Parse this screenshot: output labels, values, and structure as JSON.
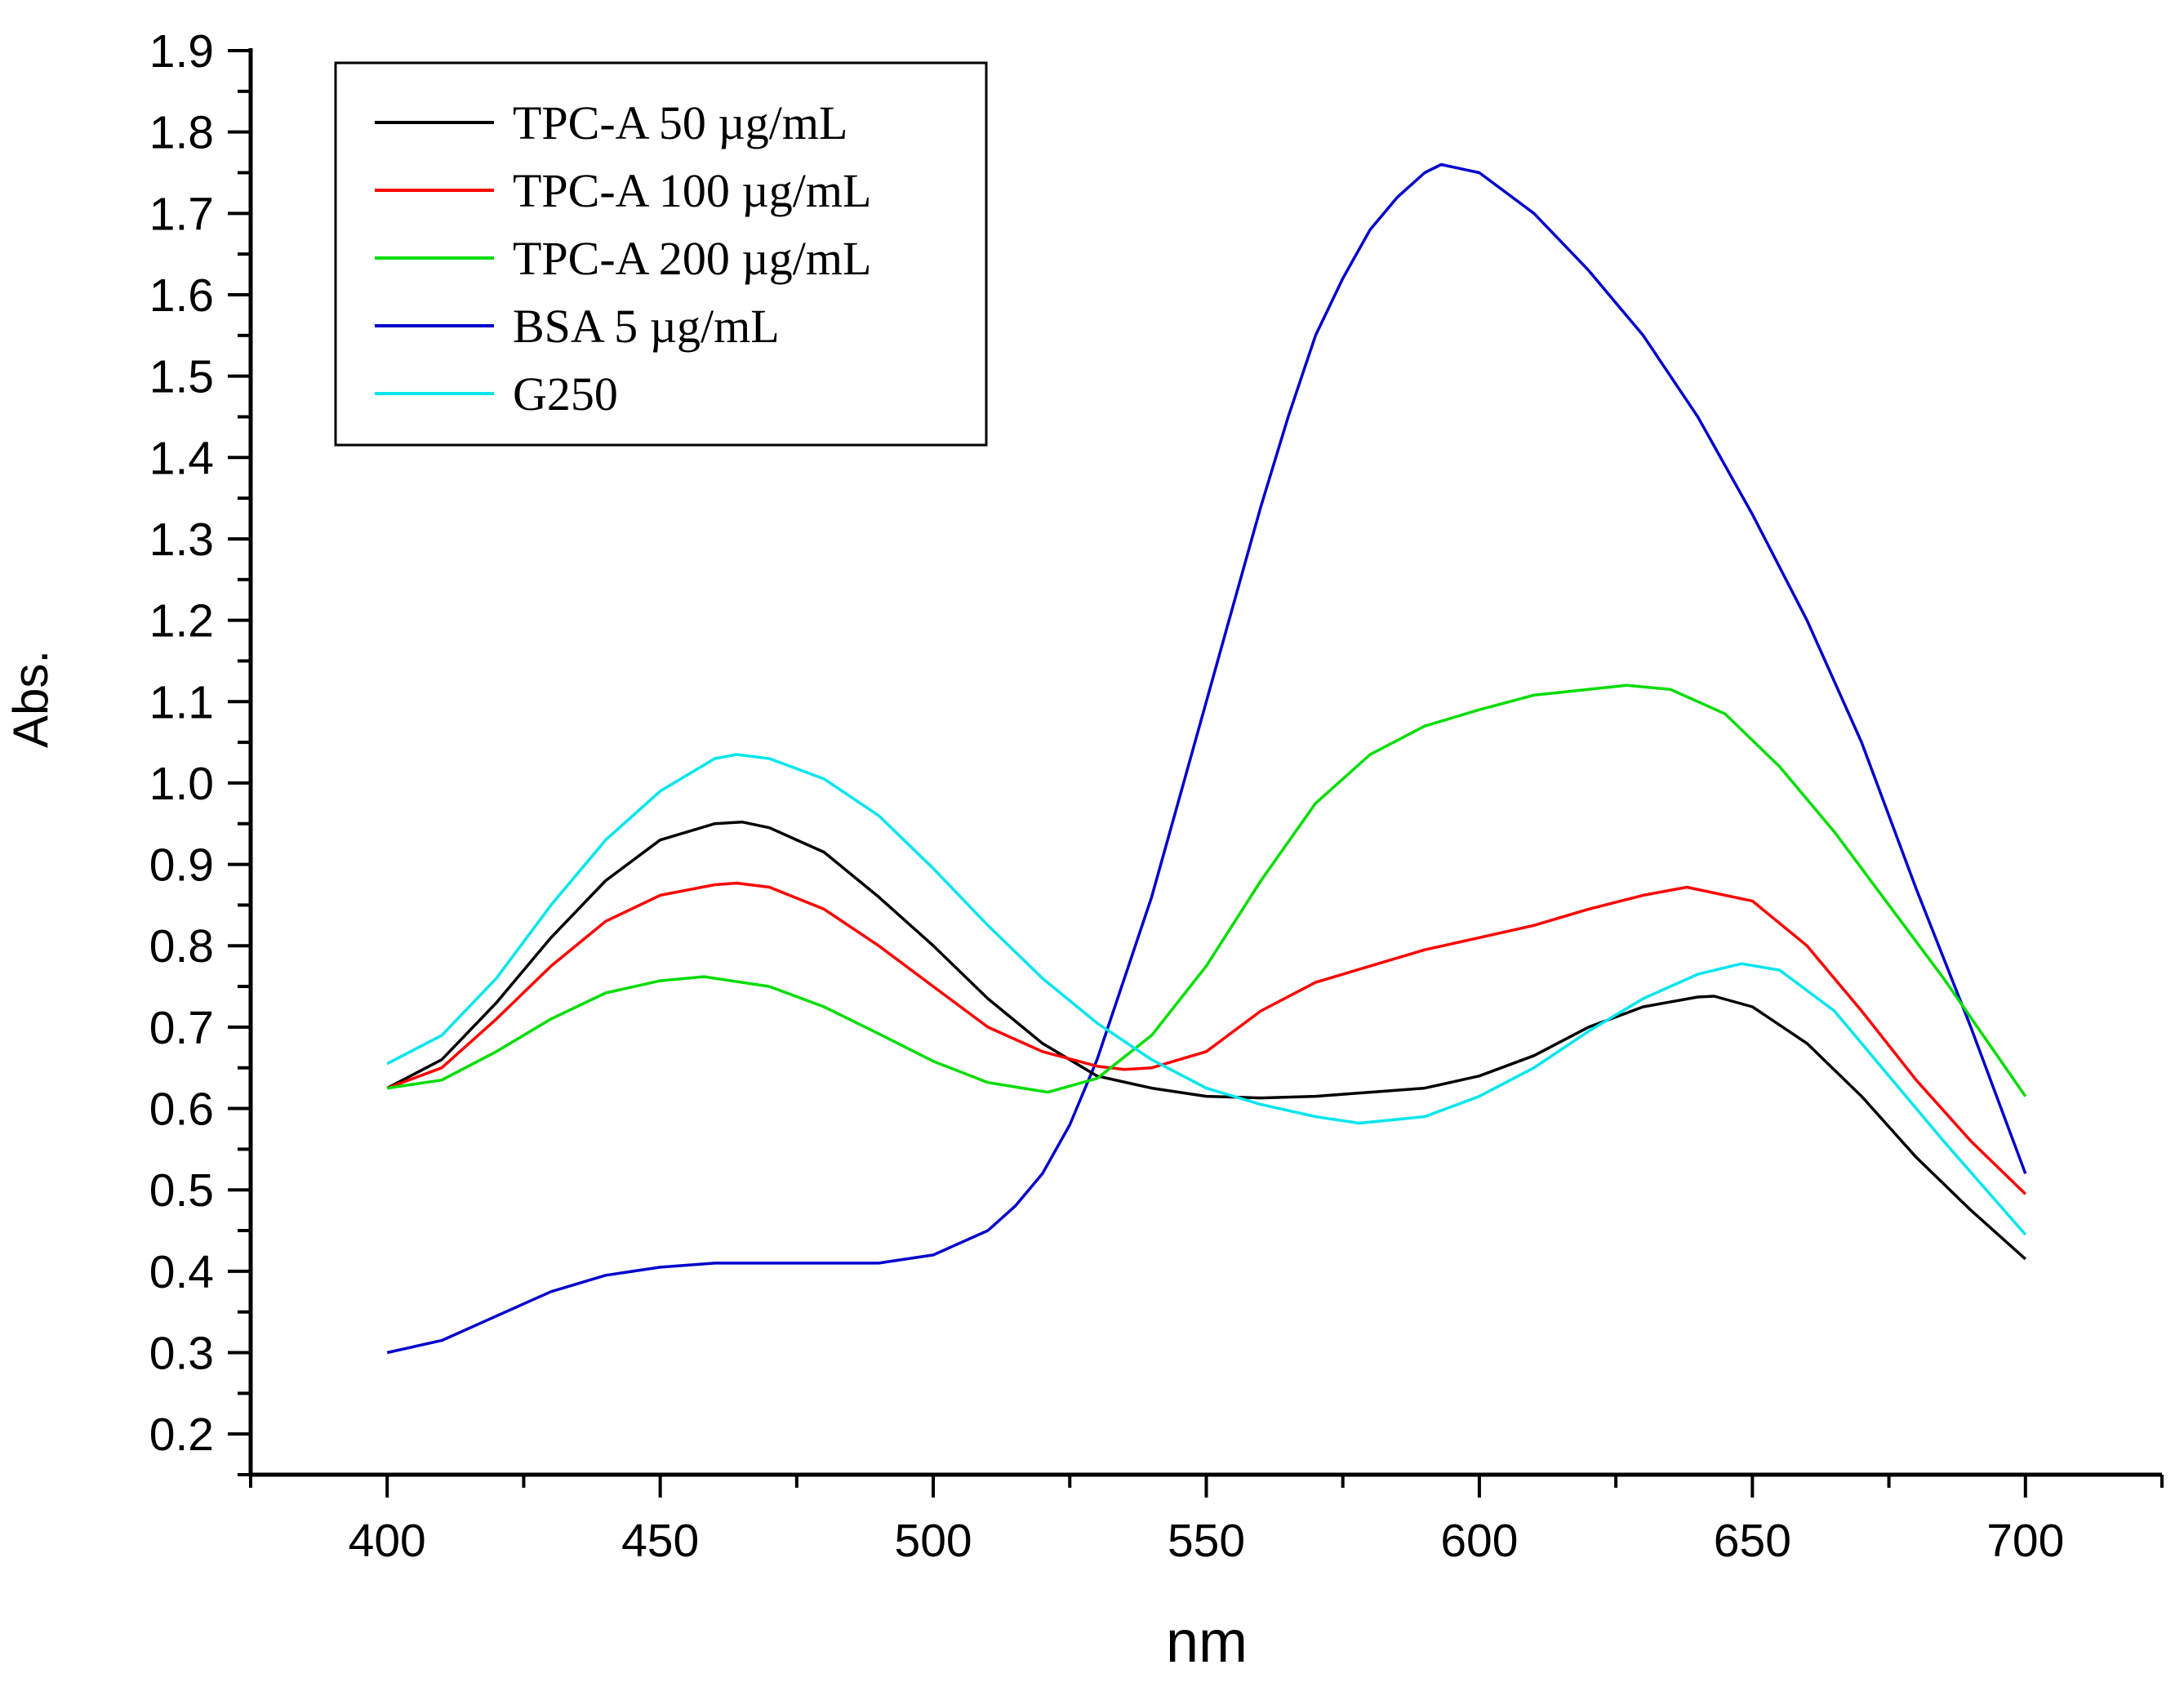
{
  "chart_data": {
    "type": "line",
    "title": "",
    "xlabel": "nm",
    "ylabel": "Abs.",
    "xlim": [
      375,
      725
    ],
    "ylim": [
      0.15,
      1.9
    ],
    "xticks": [
      400,
      450,
      500,
      550,
      600,
      650,
      700
    ],
    "xtick_labels": [
      "400",
      "450",
      "500",
      "550",
      "600",
      "650",
      "700"
    ],
    "yticks": [
      0.2,
      0.3,
      0.4,
      0.5,
      0.6,
      0.7,
      0.8,
      0.9,
      1.0,
      1.1,
      1.2,
      1.3,
      1.4,
      1.5,
      1.6,
      1.7,
      1.8,
      1.9
    ],
    "ytick_labels": [
      "0.2",
      "0.3",
      "0.4",
      "0.5",
      "0.6",
      "0.7",
      "0.8",
      "0.9",
      "1.0",
      "1.1",
      "1.2",
      "1.3",
      "1.4",
      "1.5",
      "1.6",
      "1.7",
      "1.8",
      "1.9"
    ],
    "grid": false,
    "legend_position": "top-left",
    "series": [
      {
        "name": "TPC-A 50 µg/mL",
        "color": "#000000",
        "x": [
          400,
          410,
          420,
          430,
          440,
          450,
          460,
          465,
          470,
          480,
          490,
          500,
          510,
          520,
          530,
          540,
          550,
          560,
          570,
          580,
          590,
          600,
          610,
          620,
          630,
          640,
          643,
          650,
          660,
          670,
          680,
          690,
          700
        ],
        "y": [
          0.625,
          0.66,
          0.73,
          0.81,
          0.88,
          0.93,
          0.95,
          0.952,
          0.945,
          0.915,
          0.86,
          0.8,
          0.735,
          0.68,
          0.64,
          0.625,
          0.615,
          0.613,
          0.615,
          0.62,
          0.625,
          0.64,
          0.665,
          0.7,
          0.725,
          0.737,
          0.738,
          0.725,
          0.68,
          0.615,
          0.54,
          0.475,
          0.415
        ]
      },
      {
        "name": "TPC-A 100 µg/mL",
        "color": "#ff0000",
        "x": [
          400,
          410,
          420,
          430,
          440,
          450,
          460,
          464,
          470,
          480,
          490,
          500,
          510,
          520,
          530,
          535,
          540,
          550,
          560,
          570,
          580,
          590,
          600,
          610,
          620,
          630,
          638,
          650,
          660,
          670,
          680,
          690,
          700
        ],
        "y": [
          0.625,
          0.65,
          0.71,
          0.775,
          0.83,
          0.862,
          0.875,
          0.877,
          0.872,
          0.845,
          0.8,
          0.75,
          0.7,
          0.67,
          0.652,
          0.648,
          0.65,
          0.67,
          0.72,
          0.755,
          0.775,
          0.795,
          0.81,
          0.825,
          0.845,
          0.862,
          0.872,
          0.855,
          0.8,
          0.72,
          0.635,
          0.56,
          0.495
        ]
      },
      {
        "name": "TPC-A 200 µg/mL",
        "color": "#00dd00",
        "x": [
          400,
          410,
          420,
          430,
          440,
          450,
          458,
          470,
          480,
          490,
          500,
          510,
          521,
          530,
          540,
          550,
          560,
          570,
          580,
          590,
          600,
          610,
          620,
          627,
          635,
          645,
          655,
          665,
          675,
          685,
          700
        ],
        "y": [
          0.625,
          0.635,
          0.67,
          0.71,
          0.742,
          0.757,
          0.762,
          0.75,
          0.725,
          0.692,
          0.658,
          0.632,
          0.62,
          0.637,
          0.69,
          0.775,
          0.88,
          0.975,
          1.035,
          1.07,
          1.09,
          1.108,
          1.115,
          1.12,
          1.115,
          1.085,
          1.02,
          0.94,
          0.85,
          0.76,
          0.615
        ]
      },
      {
        "name": "BSA 5 µg/mL",
        "color": "#0000cc",
        "x": [
          400,
          410,
          420,
          430,
          440,
          450,
          460,
          470,
          480,
          490,
          500,
          510,
          515,
          520,
          525,
          530,
          535,
          540,
          545,
          550,
          555,
          560,
          565,
          570,
          575,
          580,
          585,
          590,
          593,
          600,
          610,
          620,
          630,
          640,
          650,
          660,
          670,
          680,
          690,
          700
        ],
        "y": [
          0.3,
          0.315,
          0.345,
          0.375,
          0.395,
          0.405,
          0.41,
          0.41,
          0.41,
          0.41,
          0.42,
          0.45,
          0.48,
          0.52,
          0.58,
          0.66,
          0.76,
          0.86,
          0.98,
          1.1,
          1.22,
          1.34,
          1.45,
          1.55,
          1.62,
          1.68,
          1.72,
          1.75,
          1.76,
          1.75,
          1.7,
          1.63,
          1.55,
          1.45,
          1.33,
          1.2,
          1.05,
          0.87,
          0.7,
          0.52
        ]
      },
      {
        "name": "G250",
        "color": "#00e5ee",
        "x": [
          400,
          410,
          420,
          430,
          440,
          450,
          460,
          464,
          470,
          480,
          490,
          500,
          510,
          520,
          530,
          540,
          550,
          560,
          570,
          578,
          590,
          600,
          610,
          620,
          630,
          640,
          648,
          655,
          665,
          675,
          685,
          700
        ],
        "y": [
          0.655,
          0.69,
          0.76,
          0.85,
          0.93,
          0.99,
          1.03,
          1.035,
          1.03,
          1.005,
          0.96,
          0.895,
          0.825,
          0.76,
          0.705,
          0.66,
          0.625,
          0.605,
          0.59,
          0.582,
          0.59,
          0.615,
          0.65,
          0.695,
          0.735,
          0.765,
          0.778,
          0.77,
          0.72,
          0.64,
          0.56,
          0.445
        ]
      }
    ]
  }
}
